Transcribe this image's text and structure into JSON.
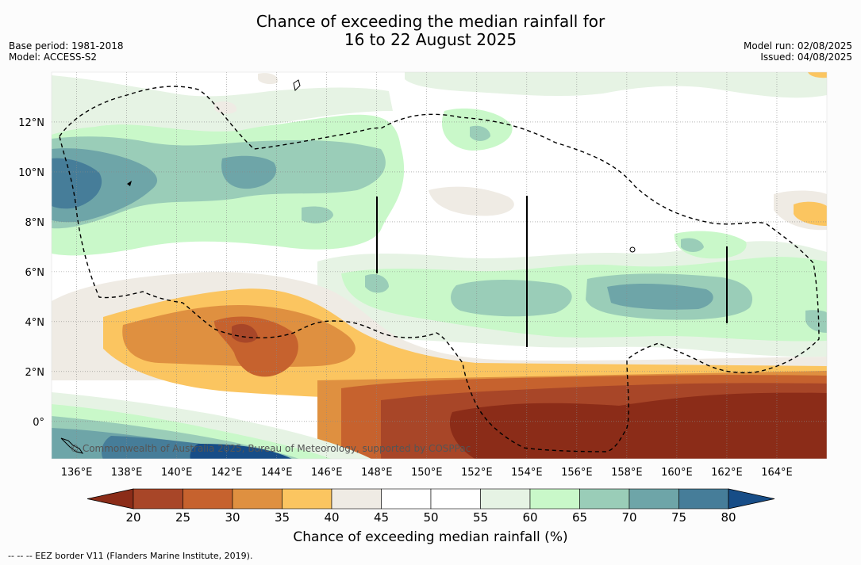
{
  "title": {
    "line1": "Chance of exceeding the median rainfall for",
    "line2": "16 to 22 August 2025"
  },
  "meta_left": {
    "base_period": "Base period: 1981-2018",
    "model": "Model: ACCESS-S2"
  },
  "meta_right": {
    "model_run": "Model run: 02/08/2025",
    "issued": "Issued: 04/08/2025"
  },
  "map": {
    "lon_range": [
      135,
      166
    ],
    "lat_range": [
      -1.5,
      14
    ],
    "lon_ticks": [
      "136°E",
      "138°E",
      "140°E",
      "142°E",
      "144°E",
      "146°E",
      "148°E",
      "150°E",
      "152°E",
      "154°E",
      "156°E",
      "158°E",
      "160°E",
      "162°E",
      "164°E"
    ],
    "lat_ticks": [
      "0°",
      "2°N",
      "4°N",
      "6°N",
      "8°N",
      "10°N",
      "12°N"
    ],
    "copyright": "© Commonwealth of Australia 2025, Bureau of Meteorology, supported by COSPPac"
  },
  "colorbar": {
    "ticks": [
      "20",
      "25",
      "30",
      "35",
      "40",
      "45",
      "50",
      "55",
      "60",
      "65",
      "70",
      "75",
      "80"
    ],
    "colors": [
      "#8b2c18",
      "#a84628",
      "#c6622e",
      "#df9040",
      "#fbc560",
      "#efebe4",
      "#ffffff",
      "#ffffff",
      "#e6f3e4",
      "#c9f8c9",
      "#9acdb8",
      "#6ea5a8",
      "#467d99",
      "#174d87"
    ],
    "label": "Chance of exceeding median rainfall (%)"
  },
  "footer": "--  --  -- EEZ border V11 (Flanders Marine Institute, 2019)."
}
